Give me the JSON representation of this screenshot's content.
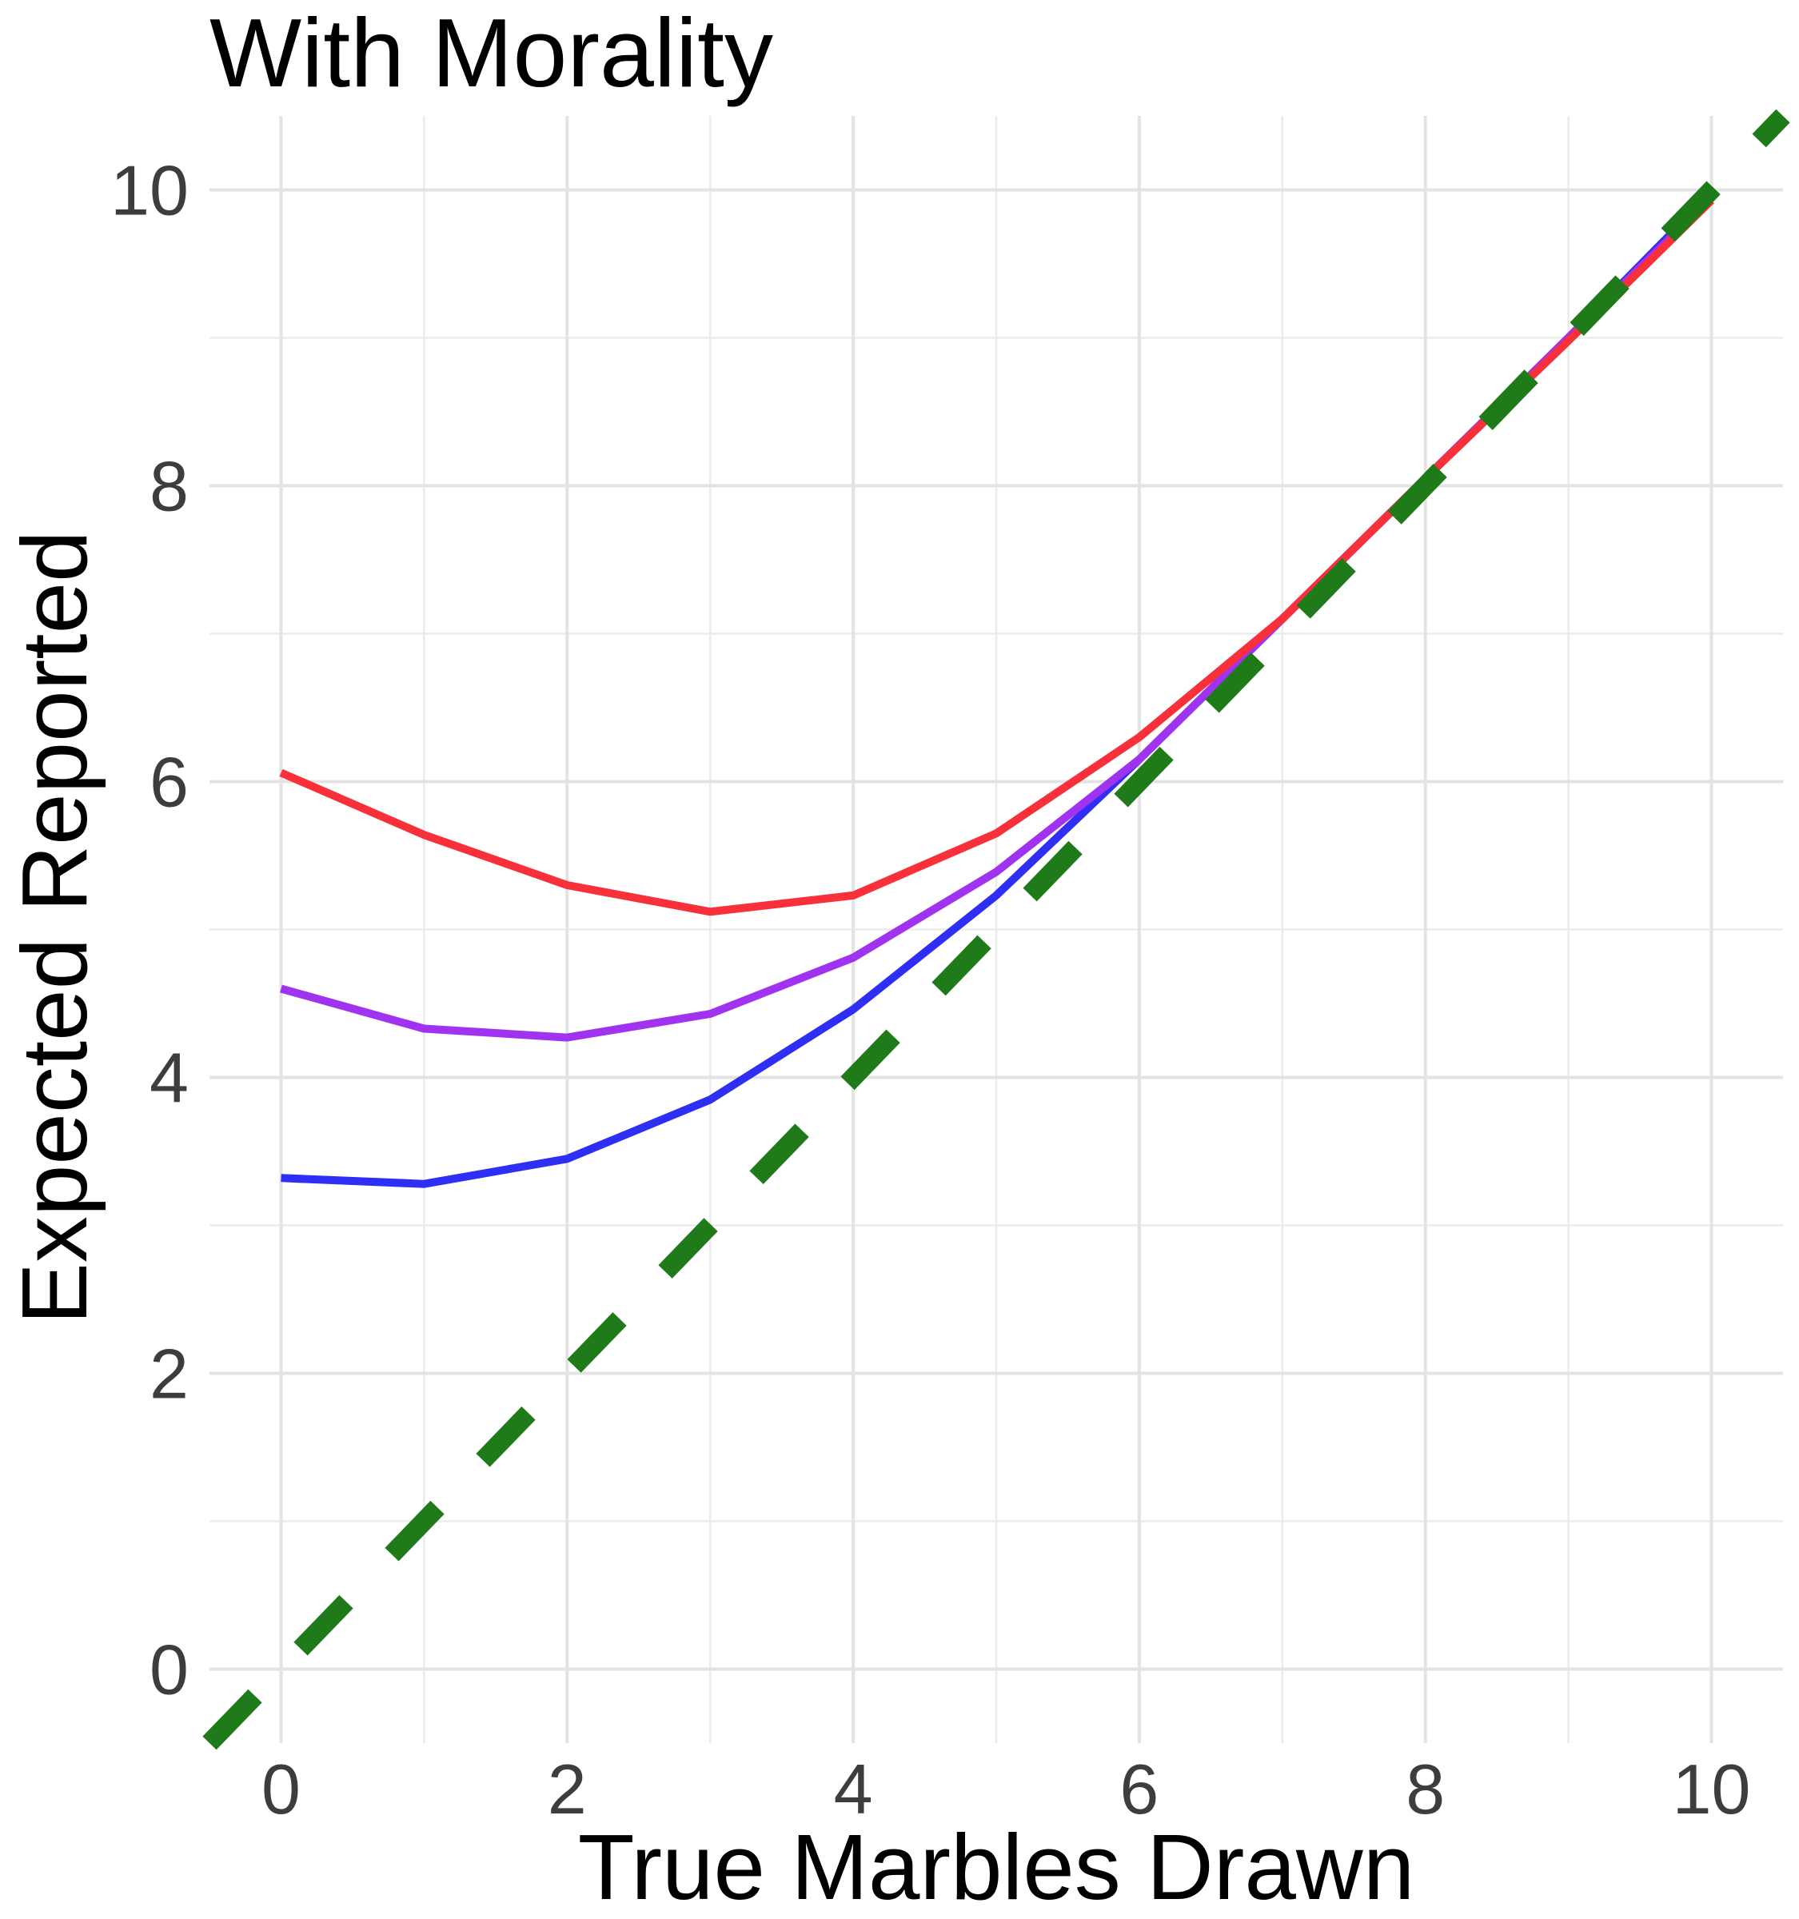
{
  "chart_data": {
    "type": "line",
    "title": "With Morality",
    "xlabel": "True Marbles Drawn",
    "ylabel": "Expected Reported",
    "xlim": [
      -0.5,
      10.5
    ],
    "ylim": [
      -0.5,
      10.5
    ],
    "x_ticks": [
      0,
      2,
      4,
      6,
      8,
      10
    ],
    "y_ticks": [
      0,
      2,
      4,
      6,
      8,
      10
    ],
    "x_tick_labels": [
      "0",
      "2",
      "4",
      "6",
      "8",
      "10"
    ],
    "y_tick_labels": [
      "0",
      "2",
      "4",
      "6",
      "8",
      "10"
    ],
    "grid": true,
    "legend": "none",
    "x": [
      0,
      1,
      2,
      3,
      4,
      5,
      6,
      7,
      8,
      9,
      10
    ],
    "series": [
      {
        "color": "#2e2ef5",
        "values": [
          3.32,
          3.28,
          3.45,
          3.85,
          4.46,
          5.23,
          6.15,
          7.1,
          8.05,
          9.0,
          9.98
        ]
      },
      {
        "color": "#a033f0",
        "values": [
          4.6,
          4.33,
          4.27,
          4.43,
          4.81,
          5.39,
          6.15,
          7.1,
          8.05,
          9.0,
          9.95
        ]
      },
      {
        "color": "#f7303a",
        "values": [
          6.06,
          5.64,
          5.3,
          5.12,
          5.23,
          5.65,
          6.3,
          7.1,
          8.05,
          8.98,
          9.93
        ]
      }
    ],
    "reference_line": {
      "color": "#1f7a1a",
      "style": "dashed",
      "x": [
        -0.5,
        10.5
      ],
      "values": [
        -0.5,
        10.5
      ]
    }
  }
}
